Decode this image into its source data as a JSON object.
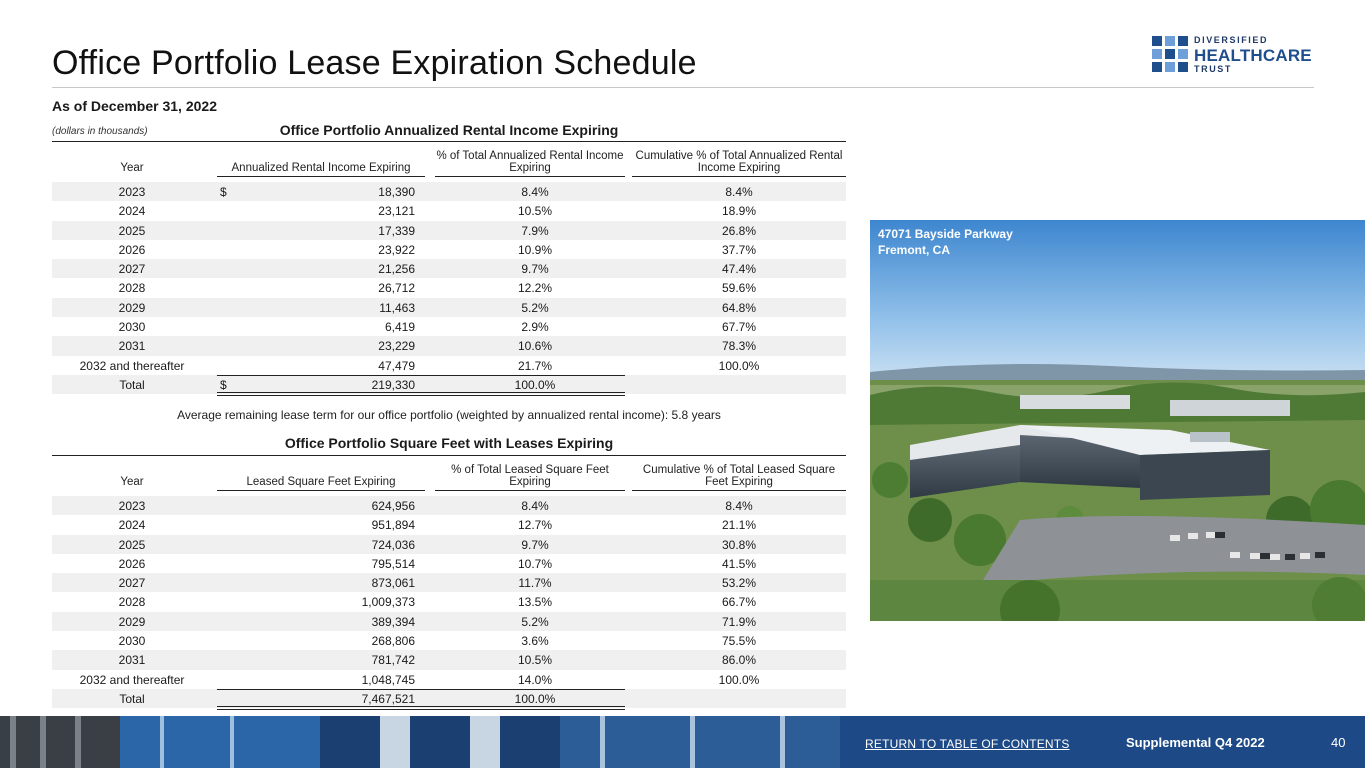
{
  "header": {
    "title": "Office Portfolio Lease Expiration Schedule",
    "as_of": "As of December 31, 2022",
    "units_note": "(dollars in thousands)"
  },
  "logo": {
    "line1": "DIVERSIFIED",
    "line2": "HEALTHCARE",
    "line3": "TRUST",
    "brand_color": "#1f4e8c",
    "accent_color": "#6f9fd8"
  },
  "rental_table": {
    "title": "Office Portfolio Annualized Rental Income Expiring",
    "headers": {
      "year": "Year",
      "value": "Annualized Rental Income Expiring",
      "pct": "% of Total Annualized Rental Income Expiring",
      "cum": "Cumulative % of Total Annualized Rental Income Expiring"
    },
    "currency_symbol": "$",
    "rows": [
      {
        "year": "2023",
        "value": "18,390",
        "pct": "8.4%",
        "cum": "8.4%"
      },
      {
        "year": "2024",
        "value": "23,121",
        "pct": "10.5%",
        "cum": "18.9%"
      },
      {
        "year": "2025",
        "value": "17,339",
        "pct": "7.9%",
        "cum": "26.8%"
      },
      {
        "year": "2026",
        "value": "23,922",
        "pct": "10.9%",
        "cum": "37.7%"
      },
      {
        "year": "2027",
        "value": "21,256",
        "pct": "9.7%",
        "cum": "47.4%"
      },
      {
        "year": "2028",
        "value": "26,712",
        "pct": "12.2%",
        "cum": "59.6%"
      },
      {
        "year": "2029",
        "value": "11,463",
        "pct": "5.2%",
        "cum": "64.8%"
      },
      {
        "year": "2030",
        "value": "6,419",
        "pct": "2.9%",
        "cum": "67.7%"
      },
      {
        "year": "2031",
        "value": "23,229",
        "pct": "10.6%",
        "cum": "78.3%"
      },
      {
        "year": "2032 and thereafter",
        "value": "47,479",
        "pct": "21.7%",
        "cum": "100.0%"
      }
    ],
    "total": {
      "label": "Total",
      "value": "219,330",
      "pct": "100.0%"
    }
  },
  "avg_term_note": "Average remaining lease term for our office portfolio (weighted by annualized rental income): 5.8 years",
  "sqft_table": {
    "title": "Office Portfolio Square Feet with Leases Expiring",
    "headers": {
      "year": "Year",
      "value": "Leased Square Feet Expiring",
      "pct": "% of Total Leased Square Feet Expiring",
      "cum": "Cumulative % of Total Leased Square Feet Expiring"
    },
    "rows": [
      {
        "year": "2023",
        "value": "624,956",
        "pct": "8.4%",
        "cum": "8.4%"
      },
      {
        "year": "2024",
        "value": "951,894",
        "pct": "12.7%",
        "cum": "21.1%"
      },
      {
        "year": "2025",
        "value": "724,036",
        "pct": "9.7%",
        "cum": "30.8%"
      },
      {
        "year": "2026",
        "value": "795,514",
        "pct": "10.7%",
        "cum": "41.5%"
      },
      {
        "year": "2027",
        "value": "873,061",
        "pct": "11.7%",
        "cum": "53.2%"
      },
      {
        "year": "2028",
        "value": "1,009,373",
        "pct": "13.5%",
        "cum": "66.7%"
      },
      {
        "year": "2029",
        "value": "389,394",
        "pct": "5.2%",
        "cum": "71.9%"
      },
      {
        "year": "2030",
        "value": "268,806",
        "pct": "3.6%",
        "cum": "75.5%"
      },
      {
        "year": "2031",
        "value": "781,742",
        "pct": "10.5%",
        "cum": "86.0%"
      },
      {
        "year": "2032 and thereafter",
        "value": "1,048,745",
        "pct": "14.0%",
        "cum": "100.0%"
      }
    ],
    "total": {
      "label": "Total",
      "value": "7,467,521",
      "pct": "100.0%"
    }
  },
  "photo": {
    "caption_line1": "47071 Bayside Parkway",
    "caption_line2": "Fremont, CA"
  },
  "footer": {
    "toc_link": "RETURN TO TABLE OF CONTENTS",
    "supplemental": "Supplemental Q4 2022",
    "page_number": "40"
  }
}
